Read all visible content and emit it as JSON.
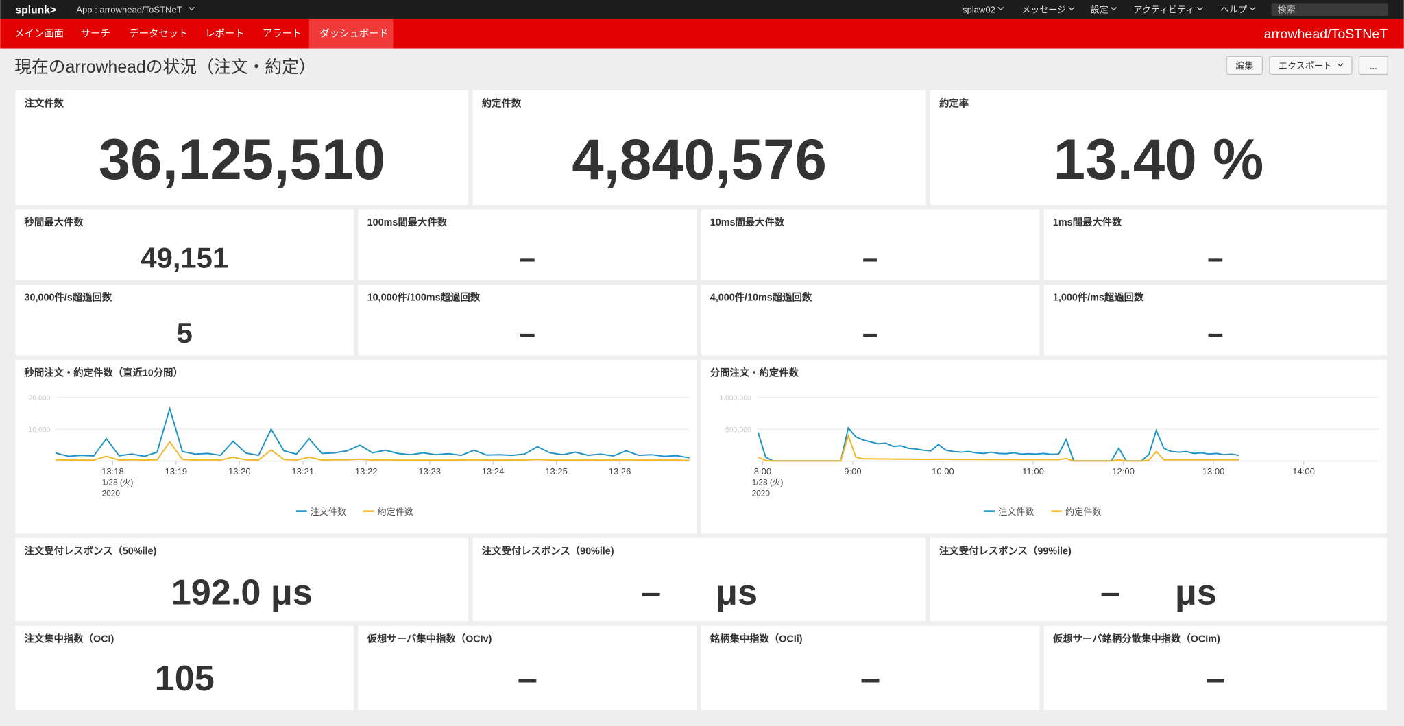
{
  "header": {
    "logo": "splunk>",
    "app": "App : arrowhead/ToSTNeT",
    "menus": [
      "splaw02",
      "メッセージ",
      "設定",
      "アクティビティ",
      "ヘルプ"
    ],
    "search": "検索"
  },
  "nav": {
    "items": [
      "メイン画面",
      "サーチ",
      "データセット",
      "レポート",
      "アラート",
      "ダッシュボード"
    ],
    "active": 5,
    "app_name": "arrowhead/ToSTNeT"
  },
  "page": {
    "title": "現在のarrowheadの状況（注文・約定）",
    "buttons": [
      "編集",
      "エクスポート",
      "..."
    ]
  },
  "panels_top": [
    [
      {
        "title": "注文件数",
        "value": "36,125,510"
      },
      {
        "title": "約定件数",
        "value": "4,840,576"
      },
      {
        "title": "約定率",
        "value": "13.40 %"
      }
    ],
    [
      {
        "title": "秒間最大件数",
        "value": "49,151"
      },
      {
        "title": "100ms間最大件数",
        "value": "–"
      },
      {
        "title": "10ms間最大件数",
        "value": "–"
      },
      {
        "title": "1ms間最大件数",
        "value": "–"
      }
    ],
    [
      {
        "title": "30,000件/s超過回数",
        "value": "5"
      },
      {
        "title": "10,000件/100ms超過回数",
        "value": "–"
      },
      {
        "title": "4,000件/10ms超過回数",
        "value": "–"
      },
      {
        "title": "1,000件/ms超過回数",
        "value": "–"
      }
    ]
  ],
  "chart_data": [
    {
      "type": "line",
      "title": "秒間注文・約定件数（直近10分間）",
      "x": [
        797.1,
        797.3,
        797.5,
        797.7,
        797.9,
        798.1,
        798.3,
        798.5,
        798.7,
        798.9,
        799.1,
        799.3,
        799.5,
        799.7,
        799.9,
        800.1,
        800.3,
        800.5,
        800.7,
        800.9,
        801.1,
        801.3,
        801.5,
        801.7,
        801.9,
        802.1,
        802.3,
        802.5,
        802.7,
        802.9,
        803.1,
        803.3,
        803.5,
        803.7,
        803.9,
        804.1,
        804.3,
        804.5,
        804.7,
        804.9,
        805.1,
        805.3,
        805.5,
        805.7,
        805.9,
        806.1,
        806.3,
        806.5,
        806.7,
        806.9,
        807.1
      ],
      "series": [
        {
          "name": "注文件数",
          "color": "#1e93c6",
          "values": [
            2500,
            1500,
            1800,
            1600,
            7000,
            1700,
            2200,
            1500,
            2800,
            16500,
            3000,
            2200,
            2400,
            1800,
            6200,
            2500,
            1800,
            10000,
            3200,
            2200,
            7000,
            2400,
            2600,
            3200,
            5000,
            2600,
            3400,
            2400,
            2000,
            2600,
            2000,
            2300,
            1800,
            3400,
            1900,
            2000,
            1800,
            2200,
            4500,
            2600,
            2000,
            2800,
            1800,
            2200,
            1600,
            3200,
            1800,
            2000,
            1500,
            1700,
            1000
          ]
        },
        {
          "name": "約定件数",
          "color": "#f2b827",
          "values": [
            400,
            300,
            300,
            300,
            1500,
            300,
            400,
            300,
            400,
            6000,
            500,
            300,
            400,
            300,
            1200,
            400,
            300,
            3500,
            500,
            300,
            1200,
            300,
            400,
            400,
            600,
            300,
            400,
            300,
            300,
            300,
            300,
            300,
            300,
            400,
            300,
            300,
            300,
            300,
            500,
            300,
            300,
            300,
            300,
            300,
            300,
            400,
            300,
            300,
            300,
            300,
            200
          ]
        }
      ],
      "xlim": [
        797.1,
        807.1
      ],
      "ylim": [
        0,
        20000
      ],
      "xticks": [
        {
          "value": 798,
          "label": "13:18"
        },
        {
          "value": 799,
          "label": "13:19"
        },
        {
          "value": 800,
          "label": "13:20"
        },
        {
          "value": 801,
          "label": "13:21"
        },
        {
          "value": 802,
          "label": "13:22"
        },
        {
          "value": 803,
          "label": "13:23"
        },
        {
          "value": 804,
          "label": "13:24"
        },
        {
          "value": 805,
          "label": "13:25"
        },
        {
          "value": 806,
          "label": "13:26"
        }
      ],
      "yticks": [
        {
          "value": 10000,
          "label": "10,000"
        },
        {
          "value": 20000,
          "label": "20,000"
        }
      ],
      "date_label": "1/28 (火)",
      "year_label": "2020",
      "grid": true,
      "legend": "bottom"
    },
    {
      "type": "line",
      "title": "分間注文・約定件数",
      "x": [
        477,
        482,
        487,
        492,
        497,
        502,
        507,
        512,
        517,
        522,
        527,
        532,
        537,
        542,
        547,
        552,
        557,
        562,
        567,
        572,
        577,
        582,
        587,
        592,
        597,
        602,
        607,
        612,
        617,
        622,
        627,
        632,
        637,
        642,
        647,
        652,
        657,
        662,
        667,
        672,
        677,
        682,
        687,
        692,
        697,
        702,
        707,
        712,
        717,
        722,
        727,
        732,
        737,
        742,
        747,
        752,
        757,
        762,
        767,
        772,
        777,
        782,
        787,
        792,
        797
      ],
      "series": [
        {
          "name": "注文件数",
          "color": "#1e93c6",
          "values": [
            450000,
            60000,
            3000,
            3000,
            3000,
            3000,
            3000,
            3000,
            3000,
            3000,
            3000,
            3000,
            520000,
            380000,
            330000,
            300000,
            270000,
            280000,
            230000,
            240000,
            200000,
            190000,
            170000,
            160000,
            260000,
            170000,
            150000,
            140000,
            150000,
            130000,
            120000,
            140000,
            120000,
            115000,
            130000,
            110000,
            115000,
            110000,
            120000,
            105000,
            110000,
            340000,
            3000,
            3000,
            3000,
            3000,
            3000,
            3000,
            200000,
            3000,
            3000,
            3000,
            100000,
            480000,
            200000,
            150000,
            140000,
            150000,
            120000,
            130000,
            110000,
            120000,
            100000,
            110000,
            90000
          ]
        },
        {
          "name": "約定件数",
          "color": "#f2b827",
          "values": [
            60000,
            10000,
            1000,
            1000,
            1000,
            1000,
            1000,
            1000,
            1000,
            1000,
            1000,
            1000,
            400000,
            60000,
            35000,
            35000,
            33000,
            34000,
            30000,
            31000,
            29000,
            28000,
            27000,
            27000,
            30000,
            28000,
            26000,
            25000,
            26000,
            25000,
            24000,
            25000,
            24000,
            24000,
            25000,
            23000,
            24000,
            23000,
            24000,
            23000,
            23000,
            40000,
            1000,
            1000,
            1000,
            1000,
            1000,
            1000,
            20000,
            1000,
            1000,
            1000,
            15000,
            150000,
            20000,
            20000,
            20000,
            20000,
            20000,
            20000,
            20000,
            20000,
            20000,
            20000,
            20000
          ]
        }
      ],
      "xlim": [
        476,
        890
      ],
      "ylim": [
        0,
        1000000
      ],
      "xticks": [
        {
          "value": 480,
          "label": "8:00"
        },
        {
          "value": 540,
          "label": "9:00"
        },
        {
          "value": 600,
          "label": "10:00"
        },
        {
          "value": 660,
          "label": "11:00"
        },
        {
          "value": 720,
          "label": "12:00"
        },
        {
          "value": 780,
          "label": "13:00"
        },
        {
          "value": 840,
          "label": "14:00"
        }
      ],
      "yticks": [
        {
          "value": 500000,
          "label": "500,000"
        },
        {
          "value": 1000000,
          "label": "1,000,000"
        }
      ],
      "date_label": "1/28 (火)",
      "year_label": "2020",
      "grid": true,
      "legend": "bottom"
    }
  ],
  "panels_bottom": [
    [
      {
        "title": "注文受付レスポンス（50%ile)",
        "value": "192.0",
        "unit": "μs"
      },
      {
        "title": "注文受付レスポンス（90%ile)",
        "value": "–",
        "unit": "μs"
      },
      {
        "title": "注文受付レスポンス（99%ile)",
        "value": "–",
        "unit": "μs"
      }
    ],
    [
      {
        "title": "注文集中指数（OCI)",
        "value": "105"
      },
      {
        "title": "仮想サーバ集中指数（OCIv)",
        "value": "–"
      },
      {
        "title": "銘柄集中指数（OCIi)",
        "value": "–"
      },
      {
        "title": "仮想サーバ銘柄分散集中指数（OCIm)",
        "value": "–"
      }
    ]
  ]
}
